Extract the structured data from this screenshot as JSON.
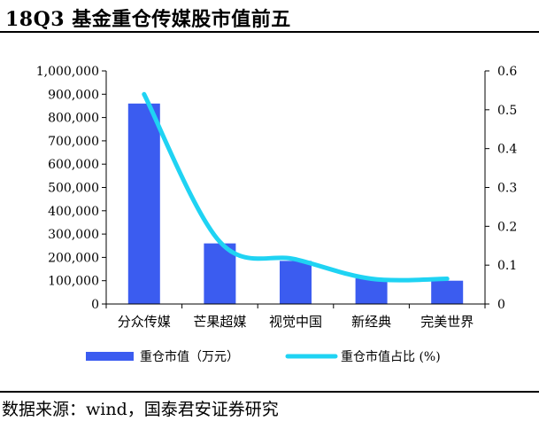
{
  "title": "18Q3 基金重仓传媒股市值前五",
  "source": "数据来源：wind，国泰君安证券研究",
  "colors": {
    "bar": "#3b5cf0",
    "line": "#1fd3f3",
    "axis": "#000000"
  },
  "chart_data": {
    "type": "bar",
    "categories": [
      "分众传媒",
      "芒果超媒",
      "视觉中国",
      "新经典",
      "完美世界"
    ],
    "series": [
      {
        "name": "重仓市值（万元）",
        "type": "bar",
        "axis": "left",
        "values": [
          860000,
          260000,
          185000,
          110000,
          100000
        ]
      },
      {
        "name": "重仓市值占比 (%)",
        "type": "line",
        "axis": "right",
        "values": [
          0.54,
          0.16,
          0.115,
          0.065,
          0.065
        ]
      }
    ],
    "y_left": {
      "min": 0,
      "max": 1000000,
      "step": 100000,
      "tick_labels": [
        "0",
        "100,000",
        "200,000",
        "300,000",
        "400,000",
        "500,000",
        "600,000",
        "700,000",
        "800,000",
        "900,000",
        "1,000,000"
      ]
    },
    "y_right": {
      "min": 0,
      "max": 0.6,
      "step": 0.1,
      "tick_labels": [
        "0",
        "0.1",
        "0.2",
        "0.3",
        "0.4",
        "0.5",
        "0.6"
      ]
    },
    "legend_position": "bottom",
    "grid": false
  }
}
